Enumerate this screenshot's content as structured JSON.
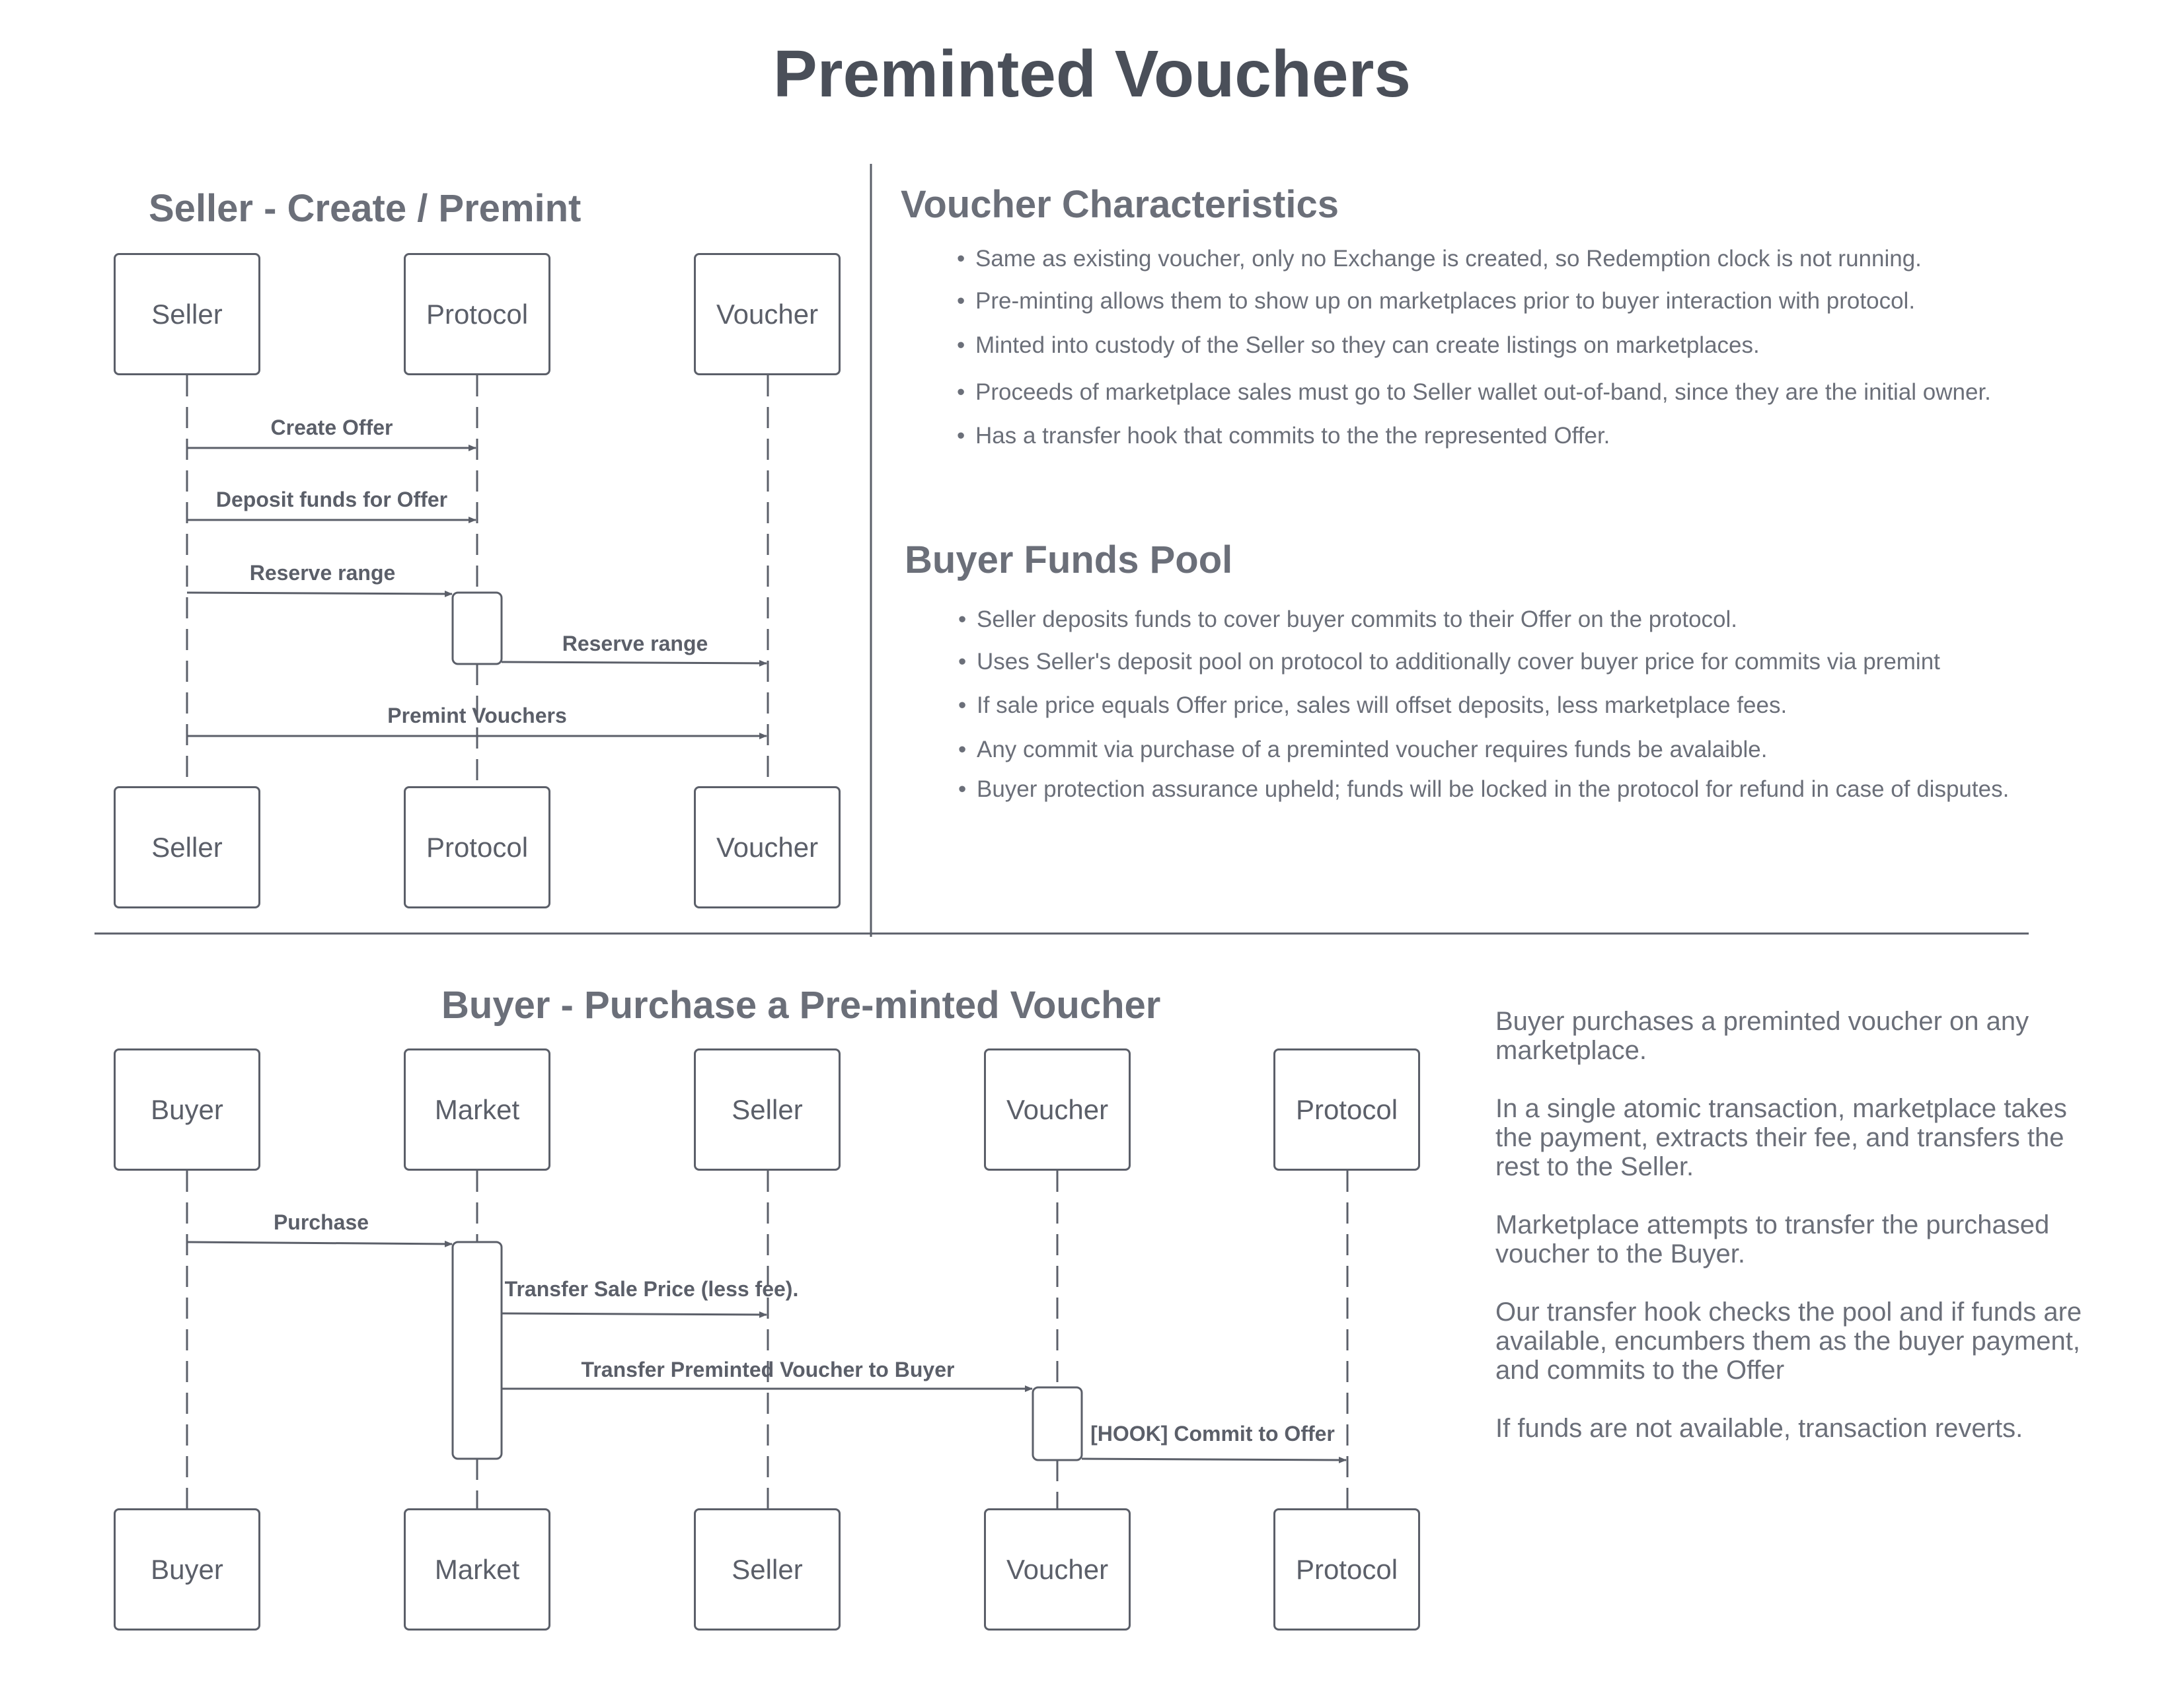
{
  "title": "Preminted Vouchers",
  "seller_section": {
    "heading": "Seller - Create / Premint",
    "participants": [
      "Seller",
      "Protocol",
      "Voucher"
    ],
    "messages": [
      "Create Offer",
      "Deposit funds for Offer",
      "Reserve range",
      "Reserve range",
      "Premint Vouchers"
    ]
  },
  "voucher_characteristics": {
    "heading": "Voucher Characteristics",
    "bullets": [
      "Same as existing voucher, only no Exchange is created, so Redemption clock is not running.",
      "Pre-minting allows them to show up on marketplaces prior to buyer interaction with protocol.",
      "Minted into custody of the Seller so they can create listings on marketplaces.",
      "Proceeds of marketplace sales must go to Seller wallet out-of-band, since they are the initial owner.",
      "Has a transfer hook that commits to the the represented Offer."
    ]
  },
  "buyer_funds_pool": {
    "heading": "Buyer Funds Pool",
    "bullets": [
      "Seller deposits funds to cover buyer commits to their Offer on the protocol.",
      "Uses Seller's deposit pool on protocol  to additionally cover buyer price for commits via premint",
      "If sale price equals Offer price, sales will offset deposits, less marketplace fees.",
      "Any commit via purchase of a preminted voucher requires funds be avalaible.",
      "Buyer protection assurance upheld; funds will be locked in the protocol for refund in case of disputes."
    ]
  },
  "buyer_section": {
    "heading": "Buyer - Purchase a Pre-minted Voucher",
    "participants": [
      "Buyer",
      "Market",
      "Seller",
      "Voucher",
      "Protocol"
    ],
    "messages": [
      "Purchase",
      "Transfer Sale Price (less fee).",
      "Transfer Preminted Voucher to Buyer",
      "[HOOK] Commit to Offer"
    ],
    "description": [
      "Buyer purchases a preminted voucher on any marketplace.",
      "In a single atomic transaction, marketplace takes the payment, extracts their fee, and transfers the rest to the Seller.",
      "Marketplace attempts to transfer the purchased voucher to the Buyer.",
      "Our transfer hook checks the pool and if funds are available, encumbers them as the buyer payment, and commits to the Offer",
      "If funds are not available, transaction reverts."
    ]
  }
}
